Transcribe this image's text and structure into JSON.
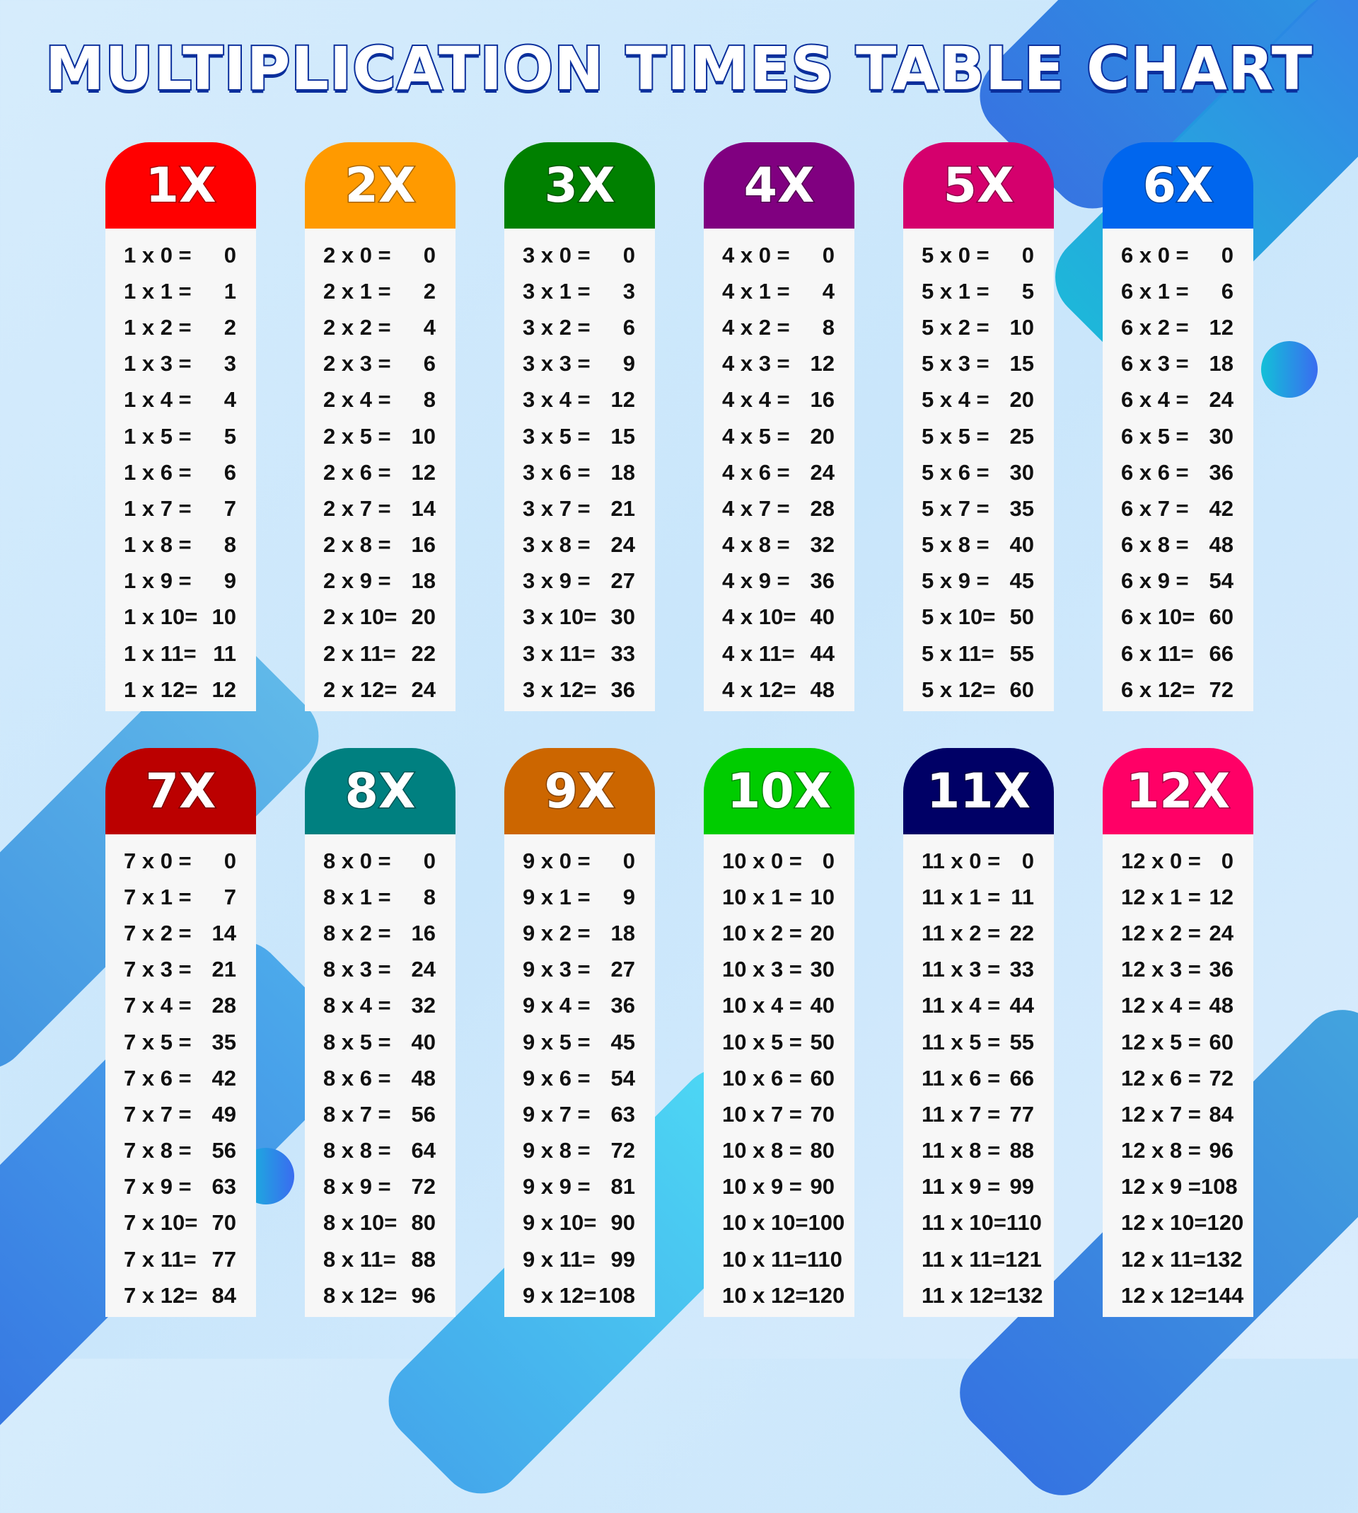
{
  "title": "MULTIPLICATION TIMES TABLE CHART",
  "tables": [
    {
      "label": "1X",
      "color": "#ff0000",
      "factor": 1
    },
    {
      "label": "2X",
      "color": "#ff9a00",
      "factor": 2
    },
    {
      "label": "3X",
      "color": "#008000",
      "factor": 3
    },
    {
      "label": "4X",
      "color": "#800080",
      "factor": 4
    },
    {
      "label": "5X",
      "color": "#d5006d",
      "factor": 5
    },
    {
      "label": "6X",
      "color": "#0066ee",
      "factor": 6
    },
    {
      "label": "7X",
      "color": "#bb0000",
      "factor": 7
    },
    {
      "label": "8X",
      "color": "#008080",
      "factor": 8
    },
    {
      "label": "9X",
      "color": "#cc6600",
      "factor": 9
    },
    {
      "label": "10X",
      "color": "#00cc00",
      "factor": 10
    },
    {
      "label": "11X",
      "color": "#000066",
      "factor": 11
    },
    {
      "label": "12X",
      "color": "#ff0066",
      "factor": 12
    }
  ],
  "multipliers": [
    0,
    1,
    2,
    3,
    4,
    5,
    6,
    7,
    8,
    9,
    10,
    11,
    12
  ]
}
